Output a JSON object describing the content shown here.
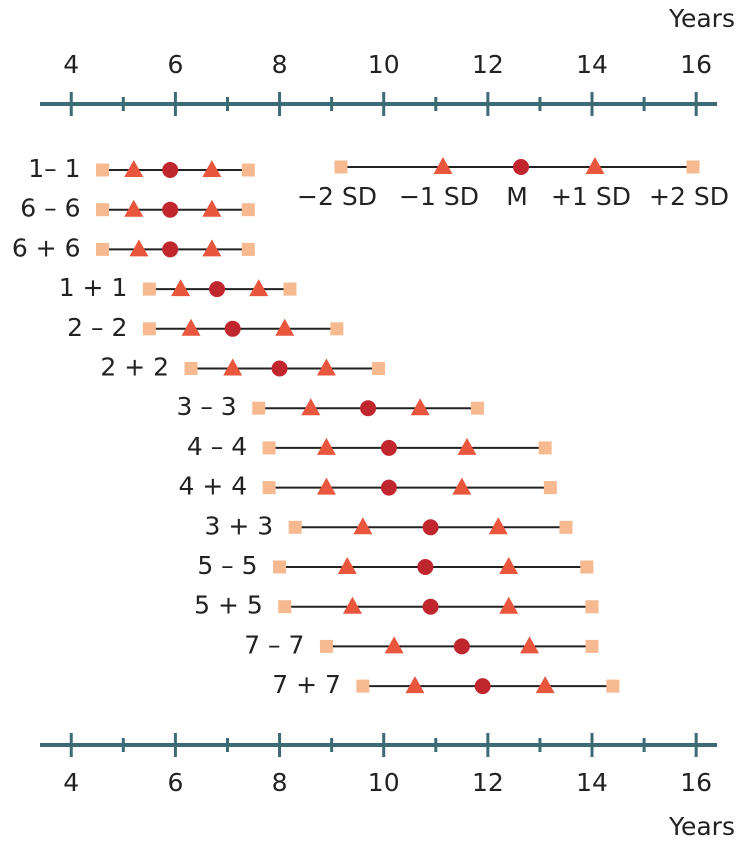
{
  "chart_data": {
    "type": "range_dot",
    "x_label": "Years",
    "xlim": [
      3.4,
      16.4
    ],
    "xticks": [
      4,
      6,
      8,
      10,
      12,
      14,
      16
    ],
    "minor_xticks": [
      5,
      7,
      9,
      11,
      13,
      15
    ],
    "axis_color": "#3d6b75",
    "categories": [
      "1– 1",
      "6 – 6",
      "6 + 6",
      "1 + 1",
      "2 – 2",
      "2 + 2",
      "3 – 3",
      "4 – 4",
      "4 + 4",
      "3 + 3",
      "5 – 5",
      "5 + 5",
      "7 – 7",
      "7 + 7"
    ],
    "series": [
      {
        "name": "−2 SD",
        "marker": "square",
        "color": "#f7b990",
        "values": [
          4.6,
          4.6,
          4.6,
          5.5,
          5.5,
          6.3,
          7.6,
          7.8,
          7.8,
          8.3,
          8.0,
          8.1,
          8.9,
          9.6
        ]
      },
      {
        "name": "−1 SD",
        "marker": "triangle",
        "color": "#e8563d",
        "values": [
          5.2,
          5.2,
          5.3,
          6.1,
          6.3,
          7.1,
          8.6,
          8.9,
          8.9,
          9.6,
          9.3,
          9.4,
          10.2,
          10.6
        ]
      },
      {
        "name": "M",
        "marker": "circle",
        "color": "#c0262d",
        "values": [
          5.9,
          5.9,
          5.9,
          6.8,
          7.1,
          8.0,
          9.7,
          10.1,
          10.1,
          10.9,
          10.8,
          10.9,
          11.5,
          11.9
        ]
      },
      {
        "name": "+1 SD",
        "marker": "triangle",
        "color": "#e8563d",
        "values": [
          6.7,
          6.7,
          6.7,
          7.6,
          8.1,
          8.9,
          10.7,
          11.6,
          11.5,
          12.2,
          12.4,
          12.4,
          12.8,
          13.1
        ]
      },
      {
        "name": "+2 SD",
        "marker": "square",
        "color": "#f7b990",
        "values": [
          7.4,
          7.4,
          7.4,
          8.2,
          9.1,
          9.9,
          11.8,
          13.1,
          13.2,
          13.5,
          13.9,
          14.0,
          14.0,
          14.4
        ]
      }
    ]
  }
}
